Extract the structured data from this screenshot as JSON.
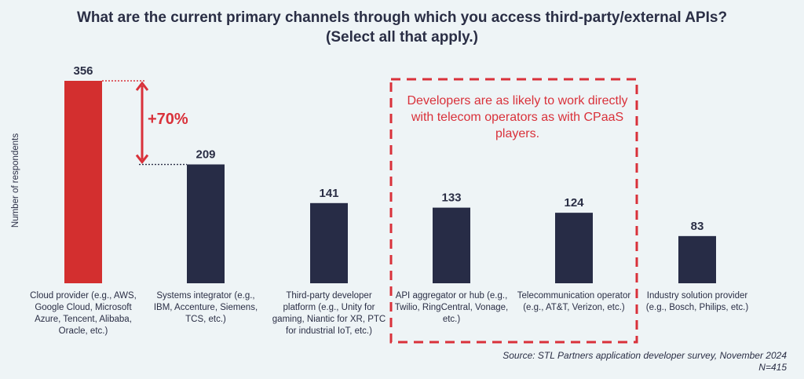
{
  "chart_data": {
    "type": "bar",
    "title": "What are the current primary channels through which you access third-party/external APIs? (Select all that apply.)",
    "title_lines": [
      "What are the current primary channels through which you access third-party/external APIs?",
      "(Select all that apply.)"
    ],
    "ylabel": "Number of respondents",
    "xlabel": "",
    "categories": [
      "Cloud provider (e.g., AWS, Google Cloud, Microsoft Azure, Tencent, Alibaba, Oracle, etc.)",
      "Systems integrator (e.g., IBM, Accenture, Siemens, TCS, etc.)",
      "Third-party developer platform (e.g., Unity for gaming, Niantic for XR, PTC for industrial IoT, etc.)",
      "API aggregator or hub (e.g., Twilio, RingCentral, Vonage, etc.)",
      "Telecommunication operator (e.g., AT&T, Verizon, etc.)",
      "Industry solution provider (e.g., Bosch, Philips, etc.)"
    ],
    "values": [
      356,
      209,
      141,
      133,
      124,
      83
    ],
    "data_labels": [
      "356",
      "209",
      "141",
      "133",
      "124",
      "83"
    ],
    "ylim": [
      0,
      356
    ],
    "grid": false,
    "legend": "none",
    "annotations": [
      {
        "text": "+70%",
        "from": "Cloud provider",
        "to": "Systems integrator"
      },
      {
        "text": "Developers are as likely to work directly with telecom operators as with CPaaS players."
      }
    ],
    "source": "Source: STL Partners application developer survey, November 2024",
    "sample": "N=415"
  },
  "label_lines": [
    [
      "Cloud provider (e.g., AWS,",
      "Google Cloud, Microsoft",
      "Azure, Tencent, Alibaba,",
      "Oracle, etc.)"
    ],
    [
      "Systems integrator (e.g.,",
      "IBM, Accenture, Siemens,",
      "TCS, etc.)"
    ],
    [
      "Third-party developer",
      "platform (e.g., Unity for",
      "gaming, Niantic for XR, PTC",
      "for industrial IoT, etc.)"
    ],
    [
      "API aggregator or hub (e.g.,",
      "Twilio, RingCentral, Vonage,",
      "etc.)"
    ],
    [
      "Telecommunication operator",
      "(e.g., AT&T, Verizon, etc.)"
    ],
    [
      "Industry solution provider",
      "(e.g., Bosch, Philips, etc.)"
    ]
  ],
  "callout_lines": [
    "Developers are as likely to work directly",
    "with telecom operators as with CPaaS",
    "players."
  ],
  "colors": {
    "highlight": "#d32f2f",
    "bar": "#272c46",
    "accent": "#d9313a",
    "text": "#2a2e45",
    "background": "#eef4f6"
  }
}
